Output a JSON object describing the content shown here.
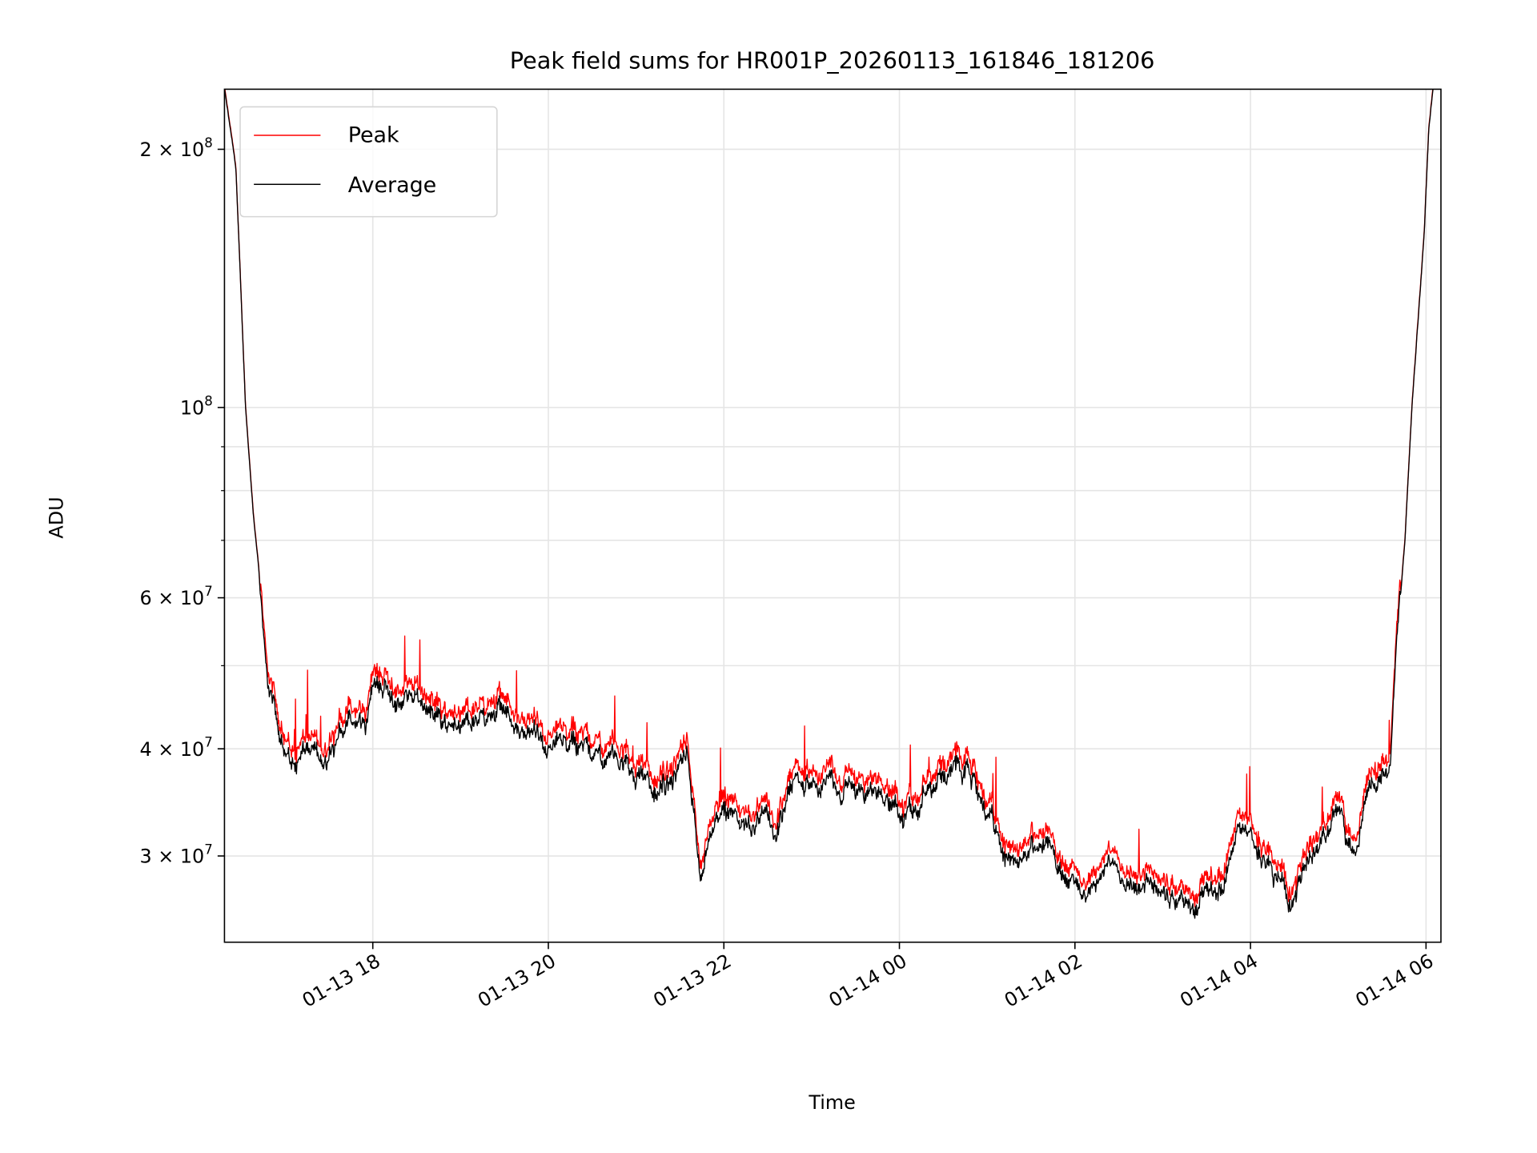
{
  "chart_data": {
    "type": "line",
    "title": "Peak field sums for HR001P_20260113_161846_181206",
    "xlabel": "Time",
    "ylabel": "ADU",
    "yscale": "log",
    "x_units": "hours since 01-13 00:00",
    "xlim": [
      16.31,
      30.17
    ],
    "ylim": [
      23800000,
      235000000
    ],
    "grid": "both",
    "legend": {
      "placement": "top-left",
      "entries": [
        "Peak",
        "Average"
      ]
    },
    "colors": {
      "Peak": "#ff0000",
      "Average": "#000000"
    },
    "x_ticks": [
      {
        "value": 18,
        "label": "01-13 18"
      },
      {
        "value": 20,
        "label": "01-13 20"
      },
      {
        "value": 22,
        "label": "01-13 22"
      },
      {
        "value": 24,
        "label": "01-14 00"
      },
      {
        "value": 26,
        "label": "01-14 02"
      },
      {
        "value": 28,
        "label": "01-14 04"
      },
      {
        "value": 30,
        "label": "01-14 06"
      }
    ],
    "y_ticks": [
      {
        "value": 200000000,
        "mant": "2 × 10",
        "exp": "8"
      },
      {
        "value": 100000000,
        "mant": "10",
        "exp": "8"
      },
      {
        "value": 60000000,
        "mant": "6 × 10",
        "exp": "7"
      },
      {
        "value": 40000000,
        "mant": "4 × 10",
        "exp": "7"
      },
      {
        "value": 30000000,
        "mant": "3 × 10",
        "exp": "7"
      }
    ],
    "y_minor": [
      50000000,
      70000000,
      80000000,
      90000000
    ],
    "series": [
      {
        "name": "Average",
        "points": [
          [
            16.31,
            235000000
          ],
          [
            16.44,
            190000000
          ],
          [
            16.55,
            100000000
          ],
          [
            16.64,
            75000000
          ],
          [
            16.7,
            65000000
          ],
          [
            16.75,
            53000000
          ],
          [
            16.83,
            46000000
          ],
          [
            16.94,
            41000000
          ],
          [
            17.1,
            39500000
          ],
          [
            17.44,
            39000000
          ],
          [
            17.6,
            42000000
          ],
          [
            17.9,
            43000000
          ],
          [
            18.05,
            48000000
          ],
          [
            18.3,
            46000000
          ],
          [
            18.55,
            45000000
          ],
          [
            19.0,
            42000000
          ],
          [
            19.45,
            44000000
          ],
          [
            19.9,
            41000000
          ],
          [
            20.46,
            40000000
          ],
          [
            20.9,
            39000000
          ],
          [
            21.2,
            35000000
          ],
          [
            21.46,
            37500000
          ],
          [
            21.58,
            39000000
          ],
          [
            21.74,
            28500000
          ],
          [
            21.9,
            34000000
          ],
          [
            22.25,
            33000000
          ],
          [
            22.6,
            32000000
          ],
          [
            22.75,
            36500000
          ],
          [
            23.27,
            36000000
          ],
          [
            23.8,
            35500000
          ],
          [
            24.08,
            33000000
          ],
          [
            24.37,
            36000000
          ],
          [
            24.65,
            38000000
          ],
          [
            25.04,
            34000000
          ],
          [
            25.26,
            29000000
          ],
          [
            25.65,
            31500000
          ],
          [
            26.05,
            27000000
          ],
          [
            26.38,
            29500000
          ],
          [
            26.82,
            27500000
          ],
          [
            27.38,
            26000000
          ],
          [
            27.6,
            27000000
          ],
          [
            27.88,
            32000000
          ],
          [
            28.16,
            30000000
          ],
          [
            28.44,
            26500000
          ],
          [
            28.7,
            30000000
          ],
          [
            29.0,
            33000000
          ],
          [
            29.2,
            29500000
          ],
          [
            29.31,
            35000000
          ],
          [
            29.59,
            39000000
          ],
          [
            29.68,
            55000000
          ],
          [
            29.76,
            70000000
          ],
          [
            29.84,
            100000000
          ],
          [
            29.98,
            160000000
          ],
          [
            30.03,
            210000000
          ],
          [
            30.08,
            235000000
          ]
        ]
      },
      {
        "name": "Peak",
        "ratio_to_average": 1.035
      }
    ]
  }
}
